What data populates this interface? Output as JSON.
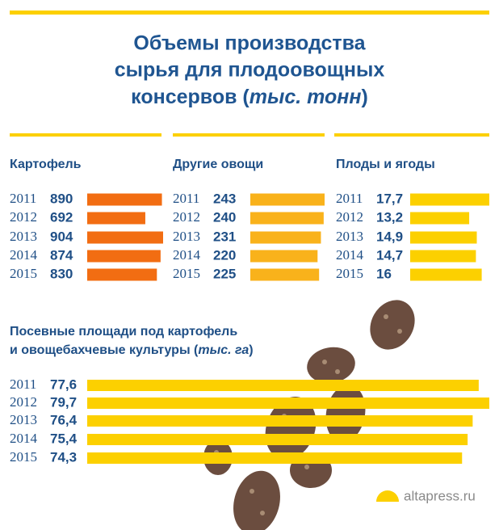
{
  "chart_data": [
    {
      "type": "bar",
      "title": [
        "Объемы производства",
        "сырья для плодоовощных",
        "консервов (",
        "тыс. тонн",
        ")"
      ],
      "subtitle": "Картофель",
      "orientation": "horizontal",
      "categories": [
        "2011",
        "2012",
        "2013",
        "2014",
        "2015"
      ],
      "values": [
        890,
        692,
        904,
        874,
        830
      ],
      "color": "#f26d12"
    },
    {
      "type": "bar",
      "subtitle": "Другие овощи",
      "orientation": "horizontal",
      "categories": [
        "2011",
        "2012",
        "2013",
        "2014",
        "2015"
      ],
      "values": [
        243,
        240,
        231,
        220,
        225
      ],
      "color": "#f9b21b"
    },
    {
      "type": "bar",
      "subtitle": "Плоды и ягоды",
      "orientation": "horizontal",
      "categories": [
        "2011",
        "2012",
        "2013",
        "2014",
        "2015"
      ],
      "values": [
        17.7,
        13.2,
        14.9,
        14.7,
        16
      ],
      "value_labels": [
        "17,7",
        "13,2",
        "14,9",
        "14,7",
        "16"
      ],
      "color": "#fcd000"
    },
    {
      "type": "bar",
      "title": [
        "Посевные площади под картофель",
        "и овощебахчевые культуры (",
        "тыс. га",
        ")"
      ],
      "orientation": "horizontal",
      "categories": [
        "2011",
        "2012",
        "2013",
        "2014",
        "2015"
      ],
      "values": [
        77.6,
        79.7,
        76.4,
        75.4,
        74.3
      ],
      "value_labels": [
        "77,6",
        "79,7",
        "76,4",
        "75,4",
        "74,3"
      ],
      "color": "#fcd000",
      "source": "altapress.ru"
    }
  ]
}
